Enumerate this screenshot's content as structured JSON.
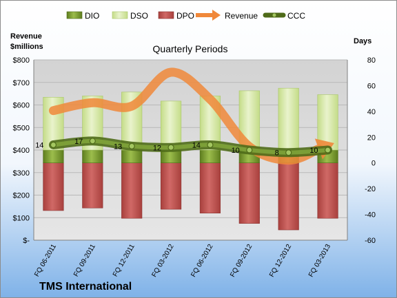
{
  "chart_data": {
    "type": "bar",
    "title": "Quarterly Periods",
    "company": "TMS International",
    "left_axis_label": [
      "Revenue",
      "$millions"
    ],
    "right_axis_label": "Days",
    "left_axis": {
      "range": [
        0,
        800
      ],
      "ticks": [
        "$-",
        "$100",
        "$200",
        "$300",
        "$400",
        "$500",
        "$600",
        "$700",
        "$800"
      ]
    },
    "right_axis": {
      "range": [
        -60,
        80
      ],
      "ticks": [
        "-60",
        "-40",
        "-20",
        "0",
        "20",
        "40",
        "60",
        "80"
      ]
    },
    "categories": [
      "FQ 06-2011",
      "FQ 09-2011",
      "FQ 12-2011",
      "FQ 03-2012",
      "FQ 06-2012",
      "FQ 09-2012",
      "FQ 12-2012",
      "FQ 03-2013"
    ],
    "legend": [
      "DIO",
      "DSO",
      "DPO",
      "Revenue",
      "CCC"
    ],
    "legend_position": "top",
    "series": [
      {
        "name": "DIO",
        "type": "bar",
        "axis": "right",
        "color": "#6b8e23",
        "values": [
          10,
          10,
          10,
          10,
          10,
          10,
          10,
          10
        ]
      },
      {
        "name": "DSO",
        "type": "bar",
        "axis": "right",
        "color": "#d6e8a8",
        "values": [
          41,
          42,
          45,
          38,
          42,
          46,
          48,
          43
        ]
      },
      {
        "name": "DPO",
        "type": "bar",
        "axis": "right",
        "color": "#c0504d",
        "values": [
          -37,
          -35,
          -43,
          -36,
          -39,
          -47,
          -52,
          -43
        ]
      },
      {
        "name": "Revenue",
        "type": "trend-arrow",
        "axis": "left",
        "color": "#f0883a",
        "values": [
          575,
          610,
          595,
          745,
          625,
          415,
          355,
          420
        ]
      },
      {
        "name": "CCC",
        "type": "line",
        "axis": "right",
        "color": "#6b8e23",
        "values": [
          14,
          17,
          13,
          12,
          14,
          10,
          8,
          10
        ],
        "labels": [
          "14",
          "17",
          "13",
          "12",
          "14",
          "10",
          "8",
          "10"
        ]
      }
    ],
    "colors": {
      "background_top": "#ffffff",
      "background_bottom": "#7fb2e8",
      "plot_background": "#dcdcdc"
    }
  }
}
